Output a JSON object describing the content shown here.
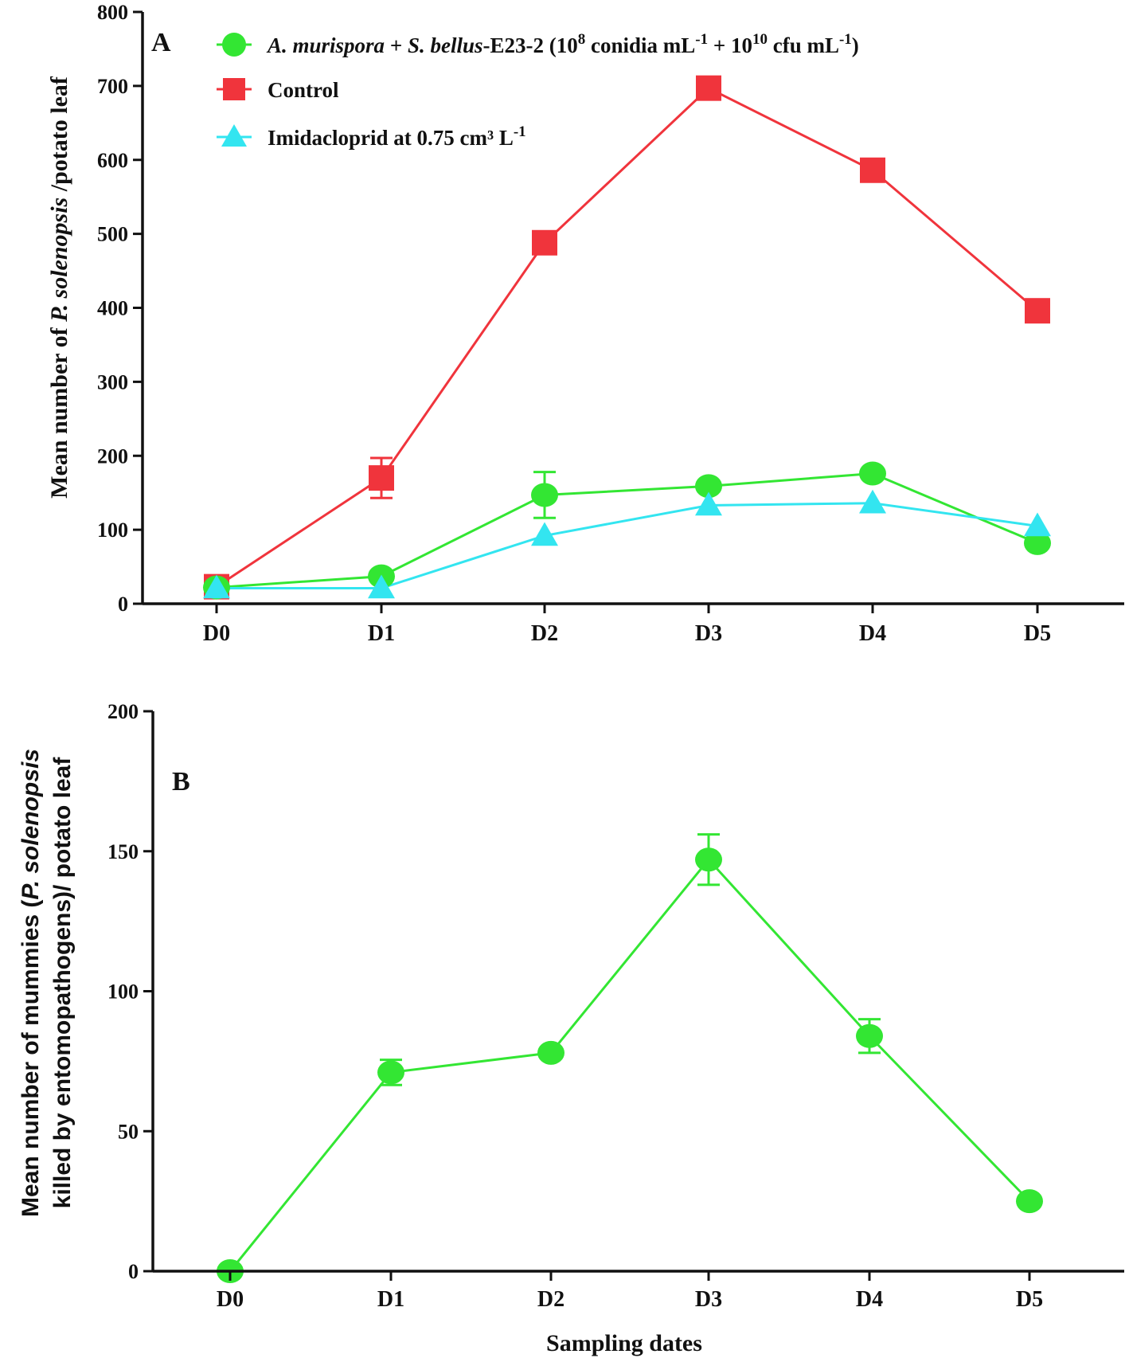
{
  "chart_data": [
    {
      "type": "line",
      "panel_label": "A",
      "categories": [
        "D0",
        "D1",
        "D2",
        "D3",
        "D4",
        "D5"
      ],
      "ylim": [
        0,
        800
      ],
      "yticks": [
        "0",
        "100",
        "200",
        "300",
        "400",
        "500",
        "600",
        "700",
        "800"
      ],
      "ylabel": {
        "prefix": "Mean number of ",
        "italic": "P. solenopsis",
        "suffix": " /potato leaf"
      },
      "legend_position": "top-left",
      "legend": {
        "treatment": {
          "italic1": "A. murispora",
          "plus": " + ",
          "italic2": "S. bellus",
          "strain": "-E23-2 (10",
          "exp8": "8",
          "conidia": " conidia mL",
          "neg1a": "-1",
          "plus10": " + 10",
          "exp10": "10",
          "cfu": " cfu mL",
          "neg1b": "-1",
          "close": ")"
        },
        "control": "Control",
        "imidacloprid": {
          "text": "Imidacloprid at 0.75 cm³ L",
          "sup": "-1"
        }
      },
      "series": [
        {
          "name": "Control",
          "marker": "square",
          "color": "#f0343c",
          "values": [
            23,
            170,
            488,
            697,
            586,
            396
          ],
          "errors": [
            0,
            27,
            0,
            0,
            0,
            0
          ]
        },
        {
          "name": "A. murispora + S. bellus-E23-2",
          "marker": "circle",
          "color": "#33e633",
          "values": [
            22,
            37,
            147,
            159,
            176,
            82
          ],
          "errors": [
            0,
            0,
            31,
            0,
            0,
            0
          ]
        },
        {
          "name": "Imidacloprid at 0.75 cm³ L-1",
          "marker": "triangle",
          "color": "#33e5f0",
          "values": [
            21,
            21,
            92,
            133,
            136,
            105
          ],
          "errors": [
            0,
            0,
            0,
            0,
            0,
            0
          ]
        }
      ]
    },
    {
      "type": "line",
      "panel_label": "B",
      "categories": [
        "D0",
        "D1",
        "D2",
        "D3",
        "D4",
        "D5"
      ],
      "ylim": [
        0,
        200
      ],
      "yticks": [
        "0",
        "50",
        "100",
        "150",
        "200"
      ],
      "xlabel": "Sampling dates",
      "ylabel": {
        "line1_prefix": "Mean number of mummies (",
        "line1_italic": "P. solenopsis",
        "line2": "killed by entomopathogens)/ potato leaf"
      },
      "series": [
        {
          "name": "Mummies",
          "marker": "circle",
          "color": "#33e633",
          "values": [
            0,
            71,
            78,
            147,
            84,
            25
          ],
          "errors": [
            0,
            4.5,
            0,
            9,
            6,
            0
          ]
        }
      ]
    }
  ]
}
